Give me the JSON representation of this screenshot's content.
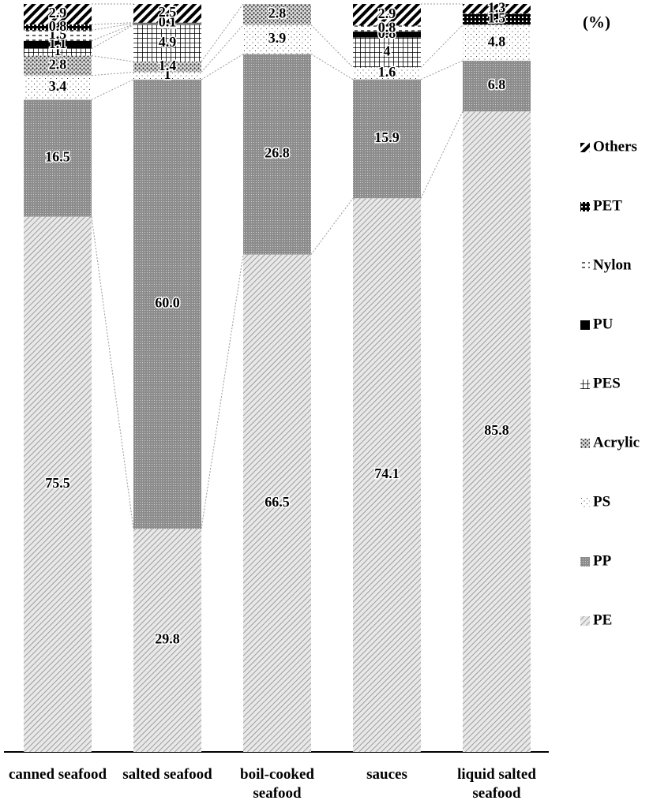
{
  "chart_data": {
    "type": "stacked-bar",
    "unit_label": "(%)",
    "categories": [
      "canned seafood",
      "salted seafood",
      "boil-cooked seafood",
      "sauces",
      "liquid salted seafood"
    ],
    "series": [
      {
        "name": "PE",
        "color": "#9a9a9a",
        "pattern": "pe",
        "values": [
          75.5,
          29.8,
          66.5,
          74.1,
          85.8
        ]
      },
      {
        "name": "PP",
        "color": "#777777",
        "pattern": "pp",
        "values": [
          16.5,
          60.0,
          26.8,
          15.9,
          6.8
        ],
        "value_labels": [
          "16.5",
          "60.0",
          "26.8",
          "15.9",
          "6.8"
        ]
      },
      {
        "name": "PS",
        "color": "#ffffff",
        "pattern": "ps",
        "values": [
          3.4,
          1.0,
          3.9,
          1.6,
          4.8
        ]
      },
      {
        "name": "Acrylic",
        "color": "#555555",
        "pattern": "acrylic",
        "values": [
          2.8,
          1.4,
          2.8,
          null,
          null
        ]
      },
      {
        "name": "PES",
        "color": "#000000",
        "pattern": "pes",
        "values": [
          1.0,
          4.9,
          null,
          4.0,
          null
        ]
      },
      {
        "name": "PU",
        "color": "#000000",
        "pattern": "pu",
        "values": [
          1.1,
          0.1,
          null,
          0.8,
          null
        ]
      },
      {
        "name": "Nylon",
        "color": "#000000",
        "pattern": "nylon",
        "values": [
          1.5,
          0.1,
          null,
          0.8,
          null
        ]
      },
      {
        "name": "PET",
        "color": "#000000",
        "pattern": "pet",
        "values": [
          0.8,
          0.1,
          null,
          null,
          1.5
        ]
      },
      {
        "name": "Others",
        "color": "#000000",
        "pattern": "others",
        "values": [
          2.9,
          2.5,
          null,
          2.9,
          1.3
        ]
      }
    ]
  }
}
